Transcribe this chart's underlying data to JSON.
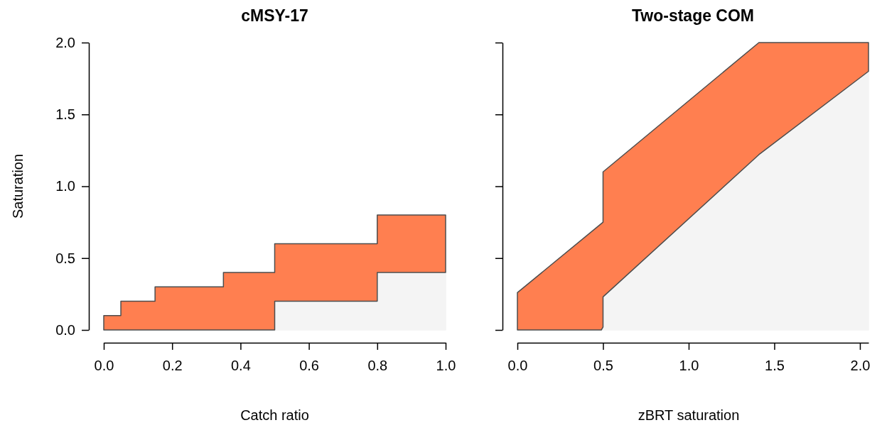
{
  "chart_data": [
    {
      "type": "area",
      "stacked": true,
      "title": "cMSY-17",
      "xlabel": "Catch ratio",
      "ylabel": "Saturation",
      "xlim": [
        0,
        1
      ],
      "xticks": [
        {
          "value": 0,
          "label": "0.0"
        },
        0.2,
        0.4,
        0.6,
        0.8,
        {
          "value": 1,
          "label": "1.0"
        }
      ],
      "ylim": [
        0,
        2
      ],
      "yticks": [
        {
          "value": 0,
          "label": "0.0"
        },
        0.5,
        {
          "value": 1,
          "label": "1.0"
        },
        1.5,
        {
          "value": 2,
          "label": "2.0"
        }
      ],
      "grid": false,
      "series": [
        {
          "color": "#f4f4f4",
          "x": [
            0,
            0.05,
            0.05,
            0.15,
            0.15,
            0.35,
            0.35,
            0.5,
            0.5,
            0.8,
            0.8,
            1.0
          ],
          "values": [
            0,
            0,
            0,
            0,
            0,
            0,
            0,
            0,
            0.2,
            0.2,
            0.4,
            0.4
          ]
        },
        {
          "color": "#ff7f50",
          "x": [
            0,
            0.05,
            0.05,
            0.15,
            0.15,
            0.35,
            0.35,
            0.5,
            0.5,
            0.8,
            0.8,
            1.0
          ],
          "values": [
            0.1,
            0.1,
            0.2,
            0.2,
            0.3,
            0.3,
            0.4,
            0.4,
            0.4,
            0.4,
            0.4,
            0.4
          ]
        }
      ]
    },
    {
      "type": "area",
      "stacked": true,
      "title": "Two-stage COM",
      "xlabel": "zBRT saturation",
      "xlim": [
        0,
        2.05
      ],
      "xticks": [
        {
          "value": 0,
          "label": "0.0"
        },
        0.5,
        {
          "value": 1,
          "label": "1.0"
        },
        1.5,
        {
          "value": 2,
          "label": "2.0"
        }
      ],
      "ylim": [
        0,
        2
      ],
      "yticks": [
        0,
        0.5,
        1,
        1.5,
        2
      ],
      "tick_labels": "x",
      "grid": false,
      "series": [
        {
          "color": "#f4f4f4",
          "x": [
            0,
            0.49,
            0.5,
            0.5,
            1.41,
            2.05
          ],
          "values": [
            0,
            0,
            0.02,
            0.23,
            1.22,
            1.8
          ]
        },
        {
          "color": "#ff7f50",
          "x": [
            0,
            0.49,
            0.5,
            0.5,
            1.41,
            2.05
          ],
          "values": [
            0.26,
            0.74,
            0.73,
            0.87,
            0.78,
            0.2
          ]
        }
      ]
    }
  ]
}
